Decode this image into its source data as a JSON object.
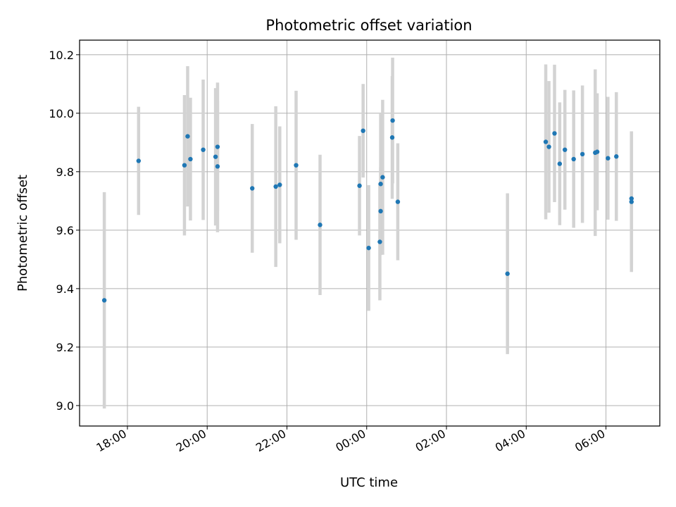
{
  "chart_data": {
    "type": "scatter",
    "title": "Photometric offset variation",
    "xlabel": "UTC time",
    "ylabel": "Photometric offset",
    "grid": true,
    "xlim_hours": [
      16.8,
      31.35
    ],
    "ylim": [
      8.93,
      10.25
    ],
    "x_tick_labels": [
      "18:00",
      "20:00",
      "22:00",
      "00:00",
      "02:00",
      "04:00",
      "06:00"
    ],
    "x_tick_hours": [
      18,
      20,
      22,
      24,
      26,
      28,
      30
    ],
    "y_tick_labels": [
      "9.0",
      "9.2",
      "9.4",
      "9.6",
      "9.8",
      "10.0",
      "10.2"
    ],
    "y_tick_values": [
      9.0,
      9.2,
      9.4,
      9.6,
      9.8,
      10.0,
      10.2
    ],
    "point_color": "#1f77b4",
    "errorbar_color": "#d3d3d3",
    "series": [
      {
        "x_hours": [
          17.42,
          18.28,
          19.43,
          19.51,
          19.58,
          19.9,
          20.21,
          20.26,
          20.26,
          21.13,
          21.72,
          21.82,
          22.23,
          22.83,
          23.82,
          23.91,
          24.05,
          24.33,
          24.35,
          24.35,
          24.4,
          24.64,
          24.65,
          24.78,
          27.53,
          28.49,
          28.57,
          28.71,
          28.84,
          28.97,
          29.19,
          29.41,
          29.73,
          29.78,
          30.05,
          30.26,
          30.64,
          30.64
        ],
        "y": [
          9.36,
          9.837,
          9.822,
          9.921,
          9.843,
          9.875,
          9.851,
          9.885,
          9.818,
          9.743,
          9.749,
          9.755,
          9.822,
          9.618,
          9.752,
          9.94,
          9.539,
          9.56,
          9.665,
          9.758,
          9.781,
          9.917,
          9.975,
          9.697,
          9.451,
          9.902,
          9.885,
          9.931,
          9.827,
          9.875,
          9.843,
          9.86,
          9.865,
          9.868,
          9.846,
          9.852,
          9.697,
          9.708
        ],
        "yerr": [
          0.37,
          0.185,
          0.24,
          0.24,
          0.21,
          0.24,
          0.235,
          0.22,
          0.225,
          0.22,
          0.275,
          0.2,
          0.255,
          0.24,
          0.17,
          0.16,
          0.215,
          0.2,
          0.15,
          0.24,
          0.265,
          0.21,
          0.215,
          0.2,
          0.275,
          0.265,
          0.225,
          0.235,
          0.21,
          0.205,
          0.235,
          0.235,
          0.285,
          0.2,
          0.21,
          0.22,
          0.24,
          0.23
        ]
      }
    ]
  }
}
